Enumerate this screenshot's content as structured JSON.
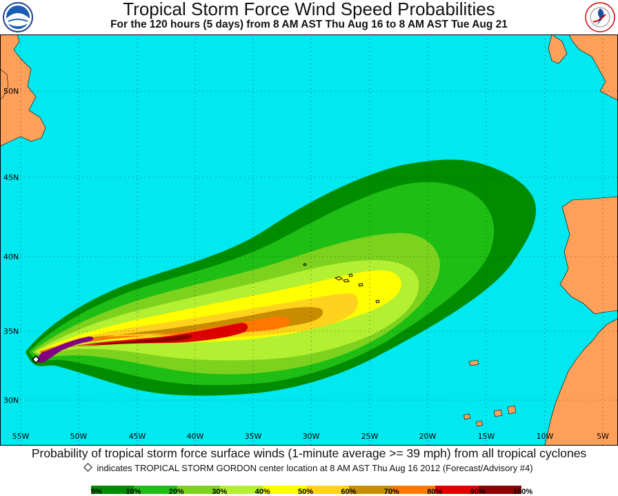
{
  "title": "Tropical Storm Force Wind Speed Probabilities",
  "subtitle": "For the 120 hours (5 days) from 8 AM AST Thu Aug 16 to 8 AM AST Tue Aug 21",
  "logos": {
    "left": "NOAA",
    "right": "NATIONAL WEATHER SERVICE"
  },
  "map": {
    "ocean_color": "#00E8F0",
    "land_color": "#FFA05A",
    "latitude_labels": [
      "50N",
      "45N",
      "40N",
      "35N",
      "30N"
    ],
    "longitude_labels": [
      "55W",
      "50W",
      "45W",
      "40W",
      "35W",
      "30W",
      "25W",
      "20W",
      "15W",
      "10W",
      "5W"
    ],
    "storm_marker": "diamond"
  },
  "footer": {
    "main": "Probability of tropical storm force surface winds (1-minute average >= 39 mph) from all tropical cyclones",
    "note": "indicates TROPICAL STORM GORDON center location at 8 AM AST Thu Aug 16 2012 (Forecast/Advisory #4)"
  },
  "legend": {
    "labels": [
      "5%",
      "10%",
      "20%",
      "30%",
      "40%",
      "50%",
      "60%",
      "70%",
      "80%",
      "90%",
      "100%"
    ],
    "colors": [
      "#008C00",
      "#1EBE14",
      "#7DD21E",
      "#B4F032",
      "#FFFF00",
      "#FFD21E",
      "#C88C00",
      "#FF7800",
      "#DC0000",
      "#8C0000",
      "#820082"
    ]
  }
}
